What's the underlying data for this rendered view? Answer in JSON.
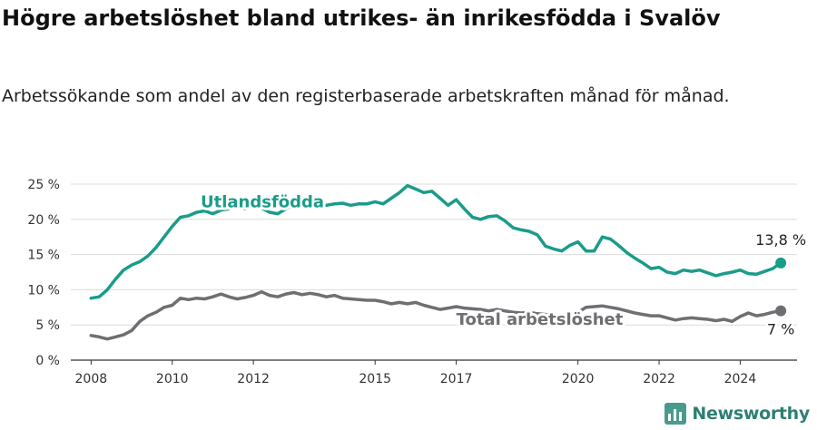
{
  "title": "Högre arbetslöshet bland utrikes- än inrikesfödda i Svalöv",
  "subtitle": "Arbetssökande som andel av den registerbaserade arbetskraften månad för månad.",
  "brand": {
    "name": "Newsworthy",
    "icon": "newsworthy-logo-icon",
    "color": "#2e7f73"
  },
  "chart_data": {
    "type": "line",
    "ylim": [
      0,
      25
    ],
    "xlim": [
      2007.5,
      2025.4
    ],
    "y_ticks": [
      "0 %",
      "5 %",
      "10 %",
      "15 %",
      "20 %",
      "25 %"
    ],
    "x_ticks": [
      "2008",
      "2010",
      "2012",
      "2015",
      "2017",
      "2020",
      "2022",
      "2024"
    ],
    "grid": true,
    "series": [
      {
        "name": "Utlandsfödda",
        "color": "#1a9c8a",
        "end_label": "13,8 %",
        "points": [
          [
            2008.0,
            8.8
          ],
          [
            2008.2,
            9.0
          ],
          [
            2008.4,
            10.0
          ],
          [
            2008.6,
            11.5
          ],
          [
            2008.8,
            12.8
          ],
          [
            2009.0,
            13.5
          ],
          [
            2009.2,
            14.0
          ],
          [
            2009.4,
            14.8
          ],
          [
            2009.6,
            16.0
          ],
          [
            2009.8,
            17.5
          ],
          [
            2010.0,
            19.0
          ],
          [
            2010.2,
            20.3
          ],
          [
            2010.4,
            20.5
          ],
          [
            2010.6,
            21.0
          ],
          [
            2010.8,
            21.2
          ],
          [
            2011.0,
            20.8
          ],
          [
            2011.2,
            21.3
          ],
          [
            2011.4,
            21.5
          ],
          [
            2011.6,
            21.7
          ],
          [
            2011.8,
            21.5
          ],
          [
            2012.0,
            22.0
          ],
          [
            2012.2,
            21.6
          ],
          [
            2012.4,
            21.0
          ],
          [
            2012.6,
            20.8
          ],
          [
            2012.8,
            21.5
          ],
          [
            2013.0,
            22.0
          ],
          [
            2013.2,
            22.3
          ],
          [
            2013.4,
            21.7
          ],
          [
            2013.6,
            22.0
          ],
          [
            2013.8,
            22.0
          ],
          [
            2014.0,
            22.2
          ],
          [
            2014.2,
            22.3
          ],
          [
            2014.4,
            22.0
          ],
          [
            2014.6,
            22.2
          ],
          [
            2014.8,
            22.2
          ],
          [
            2015.0,
            22.5
          ],
          [
            2015.2,
            22.2
          ],
          [
            2015.4,
            23.0
          ],
          [
            2015.6,
            23.8
          ],
          [
            2015.8,
            24.8
          ],
          [
            2016.0,
            24.3
          ],
          [
            2016.2,
            23.8
          ],
          [
            2016.4,
            24.0
          ],
          [
            2016.6,
            23.0
          ],
          [
            2016.8,
            22.0
          ],
          [
            2017.0,
            22.8
          ],
          [
            2017.2,
            21.5
          ],
          [
            2017.4,
            20.3
          ],
          [
            2017.6,
            20.0
          ],
          [
            2017.8,
            20.4
          ],
          [
            2018.0,
            20.5
          ],
          [
            2018.2,
            19.8
          ],
          [
            2018.4,
            18.8
          ],
          [
            2018.6,
            18.5
          ],
          [
            2018.8,
            18.3
          ],
          [
            2019.0,
            17.8
          ],
          [
            2019.2,
            16.2
          ],
          [
            2019.4,
            15.8
          ],
          [
            2019.6,
            15.5
          ],
          [
            2019.8,
            16.3
          ],
          [
            2020.0,
            16.8
          ],
          [
            2020.2,
            15.5
          ],
          [
            2020.4,
            15.5
          ],
          [
            2020.6,
            17.5
          ],
          [
            2020.8,
            17.2
          ],
          [
            2021.0,
            16.3
          ],
          [
            2021.2,
            15.3
          ],
          [
            2021.4,
            14.5
          ],
          [
            2021.6,
            13.8
          ],
          [
            2021.8,
            13.0
          ],
          [
            2022.0,
            13.2
          ],
          [
            2022.2,
            12.5
          ],
          [
            2022.4,
            12.3
          ],
          [
            2022.6,
            12.8
          ],
          [
            2022.8,
            12.6
          ],
          [
            2023.0,
            12.8
          ],
          [
            2023.2,
            12.4
          ],
          [
            2023.4,
            12.0
          ],
          [
            2023.6,
            12.3
          ],
          [
            2023.8,
            12.5
          ],
          [
            2024.0,
            12.8
          ],
          [
            2024.2,
            12.3
          ],
          [
            2024.4,
            12.2
          ],
          [
            2024.6,
            12.6
          ],
          [
            2024.8,
            13.0
          ],
          [
            2025.0,
            13.8
          ]
        ]
      },
      {
        "name": "Total arbetslöshet",
        "color": "#6e6e73",
        "end_label": "7 %",
        "points": [
          [
            2008.0,
            3.5
          ],
          [
            2008.2,
            3.3
          ],
          [
            2008.4,
            3.0
          ],
          [
            2008.6,
            3.3
          ],
          [
            2008.8,
            3.6
          ],
          [
            2009.0,
            4.2
          ],
          [
            2009.2,
            5.5
          ],
          [
            2009.4,
            6.3
          ],
          [
            2009.6,
            6.8
          ],
          [
            2009.8,
            7.5
          ],
          [
            2010.0,
            7.8
          ],
          [
            2010.2,
            8.8
          ],
          [
            2010.4,
            8.6
          ],
          [
            2010.6,
            8.8
          ],
          [
            2010.8,
            8.7
          ],
          [
            2011.0,
            9.0
          ],
          [
            2011.2,
            9.4
          ],
          [
            2011.4,
            9.0
          ],
          [
            2011.6,
            8.7
          ],
          [
            2011.8,
            8.9
          ],
          [
            2012.0,
            9.2
          ],
          [
            2012.2,
            9.7
          ],
          [
            2012.4,
            9.2
          ],
          [
            2012.6,
            9.0
          ],
          [
            2012.8,
            9.4
          ],
          [
            2013.0,
            9.6
          ],
          [
            2013.2,
            9.3
          ],
          [
            2013.4,
            9.5
          ],
          [
            2013.6,
            9.3
          ],
          [
            2013.8,
            9.0
          ],
          [
            2014.0,
            9.2
          ],
          [
            2014.2,
            8.8
          ],
          [
            2014.4,
            8.7
          ],
          [
            2014.6,
            8.6
          ],
          [
            2014.8,
            8.5
          ],
          [
            2015.0,
            8.5
          ],
          [
            2015.2,
            8.3
          ],
          [
            2015.4,
            8.0
          ],
          [
            2015.6,
            8.2
          ],
          [
            2015.8,
            8.0
          ],
          [
            2016.0,
            8.2
          ],
          [
            2016.2,
            7.8
          ],
          [
            2016.4,
            7.5
          ],
          [
            2016.6,
            7.2
          ],
          [
            2016.8,
            7.4
          ],
          [
            2017.0,
            7.6
          ],
          [
            2017.2,
            7.4
          ],
          [
            2017.4,
            7.3
          ],
          [
            2017.6,
            7.2
          ],
          [
            2017.8,
            7.0
          ],
          [
            2018.0,
            7.2
          ],
          [
            2018.2,
            7.0
          ],
          [
            2018.4,
            6.8
          ],
          [
            2018.6,
            6.7
          ],
          [
            2018.8,
            6.8
          ],
          [
            2019.0,
            6.6
          ],
          [
            2019.2,
            6.5
          ],
          [
            2019.4,
            6.4
          ],
          [
            2019.6,
            6.3
          ],
          [
            2019.8,
            6.5
          ],
          [
            2020.0,
            6.8
          ],
          [
            2020.2,
            7.5
          ],
          [
            2020.4,
            7.6
          ],
          [
            2020.6,
            7.7
          ],
          [
            2020.8,
            7.5
          ],
          [
            2021.0,
            7.3
          ],
          [
            2021.2,
            7.0
          ],
          [
            2021.4,
            6.7
          ],
          [
            2021.6,
            6.5
          ],
          [
            2021.8,
            6.3
          ],
          [
            2022.0,
            6.3
          ],
          [
            2022.2,
            6.0
          ],
          [
            2022.4,
            5.7
          ],
          [
            2022.6,
            5.9
          ],
          [
            2022.8,
            6.0
          ],
          [
            2023.0,
            5.9
          ],
          [
            2023.2,
            5.8
          ],
          [
            2023.4,
            5.6
          ],
          [
            2023.6,
            5.8
          ],
          [
            2023.8,
            5.5
          ],
          [
            2024.0,
            6.2
          ],
          [
            2024.2,
            6.7
          ],
          [
            2024.4,
            6.3
          ],
          [
            2024.6,
            6.5
          ],
          [
            2024.8,
            6.8
          ],
          [
            2025.0,
            7.0
          ]
        ]
      }
    ]
  }
}
